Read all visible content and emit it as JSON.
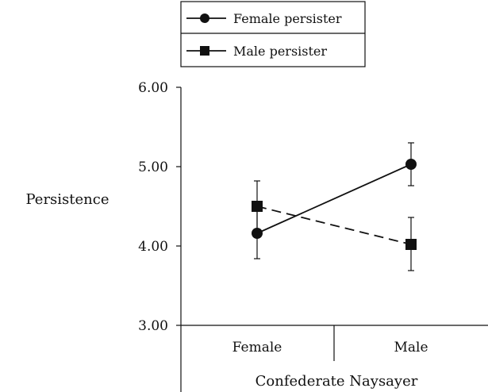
{
  "chart_data": {
    "type": "line",
    "title": "",
    "xlabel": "Confederate Naysayer",
    "ylabel": "Persistence",
    "categories": [
      "Female",
      "Male"
    ],
    "ylim": [
      3.0,
      6.0
    ],
    "yticks": [
      "3.00",
      "4.00",
      "5.00",
      "6.00"
    ],
    "grid": false,
    "legend_position": "top",
    "series": [
      {
        "name": "Female persister",
        "marker": "circle",
        "line_style": "solid",
        "values": [
          4.16,
          5.03
        ],
        "error": [
          [
            3.84,
            4.48
          ],
          [
            4.76,
            5.3
          ]
        ]
      },
      {
        "name": "Male persister",
        "marker": "square",
        "line_style": "dashed",
        "values": [
          4.5,
          4.02
        ],
        "error": [
          [
            4.18,
            4.82
          ],
          [
            3.69,
            4.36
          ]
        ]
      }
    ]
  }
}
